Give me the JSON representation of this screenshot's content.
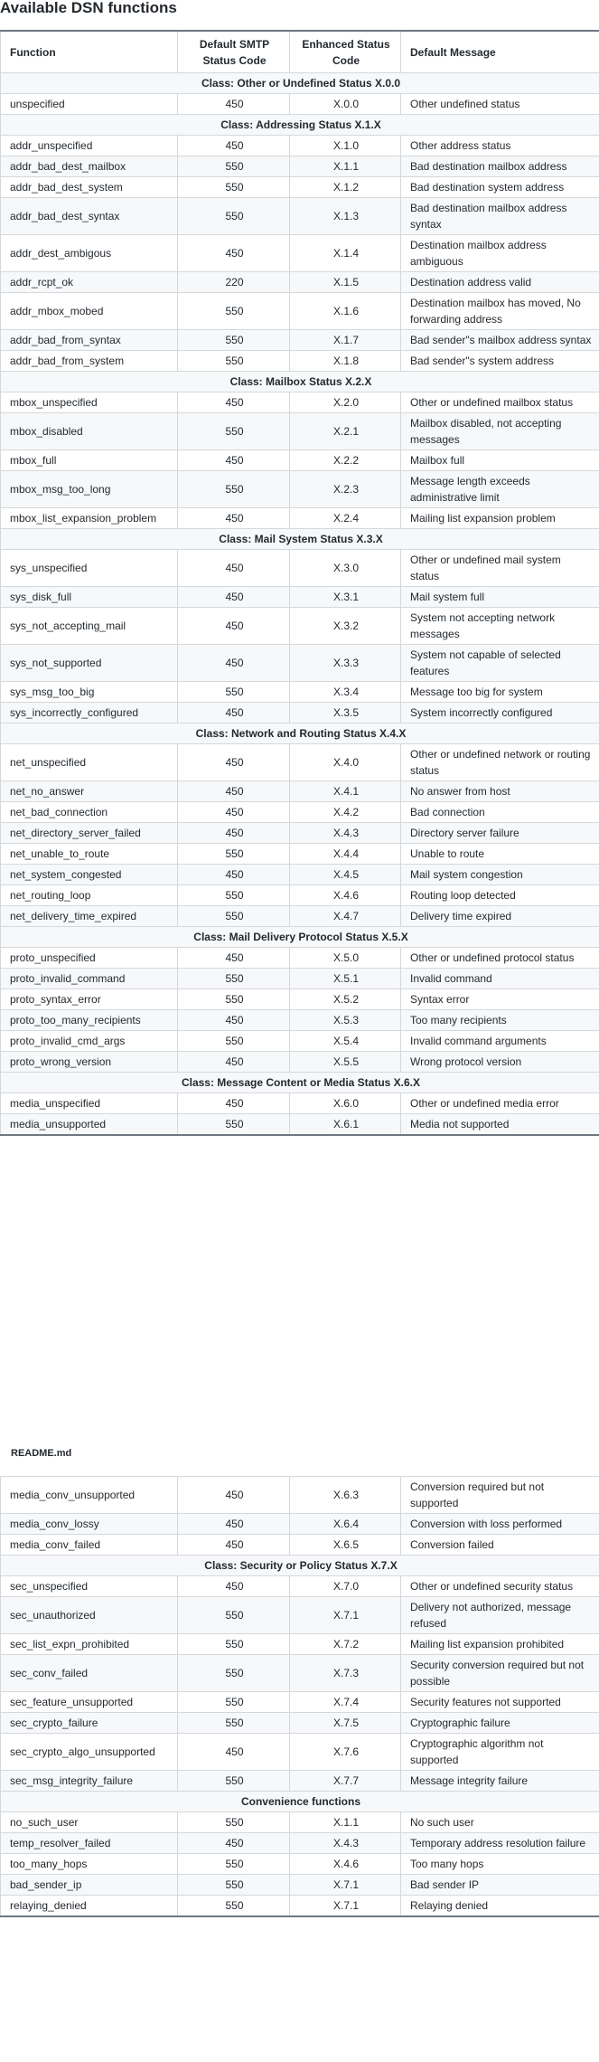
{
  "page": {
    "title": "Available DSN functions",
    "readme": "README.md"
  },
  "headers": [
    "Function",
    "Default SMTP Status Code",
    "Enhanced Status Code",
    "Default Message"
  ],
  "sections1": [
    {
      "class": "Class: Other or Undefined Status X.0.0",
      "rows": [
        [
          "unspecified",
          "450",
          "X.0.0",
          "Other undefined status"
        ]
      ]
    },
    {
      "class": "Class: Addressing Status X.1.X",
      "rows": [
        [
          "addr_unspecified",
          "450",
          "X.1.0",
          "Other address status"
        ],
        [
          "addr_bad_dest_mailbox",
          "550",
          "X.1.1",
          "Bad destination mailbox address"
        ],
        [
          "addr_bad_dest_system",
          "550",
          "X.1.2",
          "Bad destination system address"
        ],
        [
          "addr_bad_dest_syntax",
          "550",
          "X.1.3",
          "Bad destination mailbox address syntax"
        ],
        [
          "addr_dest_ambigous",
          "450",
          "X.1.4",
          "Destination mailbox address ambiguous"
        ],
        [
          "addr_rcpt_ok",
          "220",
          "X.1.5",
          "Destination address valid"
        ],
        [
          "addr_mbox_mobed",
          "550",
          "X.1.6",
          "Destination mailbox has moved, No forwarding address"
        ],
        [
          "addr_bad_from_syntax",
          "550",
          "X.1.7",
          "Bad sender\"s mailbox address syntax"
        ],
        [
          "addr_bad_from_system",
          "550",
          "X.1.8",
          "Bad sender\"s system address"
        ]
      ]
    },
    {
      "class": "Class: Mailbox Status X.2.X",
      "rows": [
        [
          "mbox_unspecified",
          "450",
          "X.2.0",
          "Other or undefined mailbox status"
        ],
        [
          "mbox_disabled",
          "550",
          "X.2.1",
          "Mailbox disabled, not accepting messages"
        ],
        [
          "mbox_full",
          "450",
          "X.2.2",
          "Mailbox full"
        ],
        [
          "mbox_msg_too_long",
          "550",
          "X.2.3",
          "Message length exceeds administrative limit"
        ],
        [
          "mbox_list_expansion_problem",
          "450",
          "X.2.4",
          "Mailing list expansion problem"
        ]
      ]
    },
    {
      "class": "Class: Mail System Status X.3.X",
      "rows": [
        [
          "sys_unspecified",
          "450",
          "X.3.0",
          "Other or undefined mail system status"
        ],
        [
          "sys_disk_full",
          "450",
          "X.3.1",
          "Mail system full"
        ],
        [
          "sys_not_accepting_mail",
          "450",
          "X.3.2",
          "System not accepting network messages"
        ],
        [
          "sys_not_supported",
          "450",
          "X.3.3",
          "System not capable of selected features"
        ],
        [
          "sys_msg_too_big",
          "550",
          "X.3.4",
          "Message too big for system"
        ],
        [
          "sys_incorrectly_configured",
          "450",
          "X.3.5",
          "System incorrectly configured"
        ]
      ]
    },
    {
      "class": "Class: Network and Routing Status X.4.X",
      "rows": [
        [
          "net_unspecified",
          "450",
          "X.4.0",
          "Other or undefined network or routing status"
        ],
        [
          "net_no_answer",
          "450",
          "X.4.1",
          "No answer from host"
        ],
        [
          "net_bad_connection",
          "450",
          "X.4.2",
          "Bad connection"
        ],
        [
          "net_directory_server_failed",
          "450",
          "X.4.3",
          "Directory server failure"
        ],
        [
          "net_unable_to_route",
          "550",
          "X.4.4",
          "Unable to route"
        ],
        [
          "net_system_congested",
          "450",
          "X.4.5",
          "Mail system congestion"
        ],
        [
          "net_routing_loop",
          "550",
          "X.4.6",
          "Routing loop detected"
        ],
        [
          "net_delivery_time_expired",
          "550",
          "X.4.7",
          "Delivery time expired"
        ]
      ]
    },
    {
      "class": "Class: Mail Delivery Protocol Status X.5.X",
      "rows": [
        [
          "proto_unspecified",
          "450",
          "X.5.0",
          "Other or undefined protocol status"
        ],
        [
          "proto_invalid_command",
          "550",
          "X.5.1",
          "Invalid command"
        ],
        [
          "proto_syntax_error",
          "550",
          "X.5.2",
          "Syntax error"
        ],
        [
          "proto_too_many_recipients",
          "450",
          "X.5.3",
          "Too many recipients"
        ],
        [
          "proto_invalid_cmd_args",
          "550",
          "X.5.4",
          "Invalid command arguments"
        ],
        [
          "proto_wrong_version",
          "450",
          "X.5.5",
          "Wrong protocol version"
        ]
      ]
    },
    {
      "class": "Class: Message Content or Media Status X.6.X",
      "rows": [
        [
          "media_unspecified",
          "450",
          "X.6.0",
          "Other or undefined media error"
        ],
        [
          "media_unsupported",
          "550",
          "X.6.1",
          "Media not supported"
        ]
      ]
    }
  ],
  "sections2": [
    {
      "class": null,
      "rows": [
        [
          "media_conv_unsupported",
          "450",
          "X.6.3",
          "Conversion required but not supported"
        ],
        [
          "media_conv_lossy",
          "450",
          "X.6.4",
          "Conversion with loss performed"
        ],
        [
          "media_conv_failed",
          "450",
          "X.6.5",
          "Conversion failed"
        ]
      ]
    },
    {
      "class": "Class: Security or Policy Status X.7.X",
      "rows": [
        [
          "sec_unspecified",
          "450",
          "X.7.0",
          "Other or undefined security status"
        ],
        [
          "sec_unauthorized",
          "550",
          "X.7.1",
          "Delivery not authorized, message refused"
        ],
        [
          "sec_list_expn_prohibited",
          "550",
          "X.7.2",
          "Mailing list expansion prohibited"
        ],
        [
          "sec_conv_failed",
          "550",
          "X.7.3",
          "Security conversion required but not possible"
        ],
        [
          "sec_feature_unsupported",
          "550",
          "X.7.4",
          "Security features not supported"
        ],
        [
          "sec_crypto_failure",
          "550",
          "X.7.5",
          "Cryptographic failure"
        ],
        [
          "sec_crypto_algo_unsupported",
          "450",
          "X.7.6",
          "Cryptographic algorithm not supported"
        ],
        [
          "sec_msg_integrity_failure",
          "550",
          "X.7.7",
          "Message integrity failure"
        ]
      ]
    },
    {
      "class": "Convenience functions",
      "rows": [
        [
          "no_such_user",
          "550",
          "X.1.1",
          "No such user"
        ],
        [
          "temp_resolver_failed",
          "450",
          "X.4.3",
          "Temporary address resolution failure"
        ],
        [
          "too_many_hops",
          "550",
          "X.4.6",
          "Too many hops"
        ],
        [
          "bad_sender_ip",
          "550",
          "X.7.1",
          "Bad sender IP"
        ],
        [
          "relaying_denied",
          "550",
          "X.7.1",
          "Relaying denied"
        ]
      ]
    }
  ]
}
